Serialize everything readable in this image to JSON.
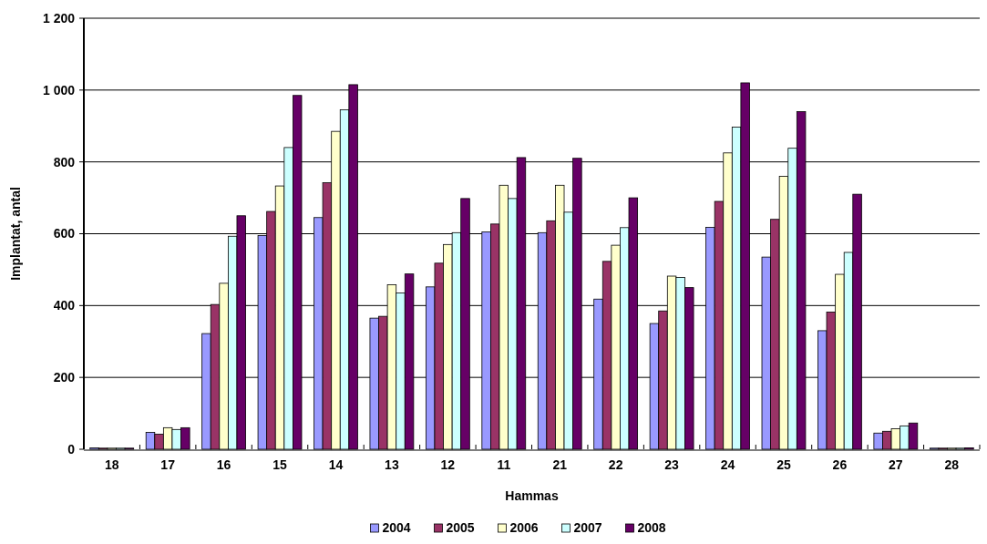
{
  "chart_data": {
    "type": "bar",
    "xlabel": "Hammas",
    "ylabel": "Implantat, antal",
    "categories": [
      "18",
      "17",
      "16",
      "15",
      "14",
      "13",
      "12",
      "11",
      "21",
      "22",
      "23",
      "24",
      "25",
      "26",
      "27",
      "28"
    ],
    "series": [
      {
        "name": "2004",
        "color": "#9999ff",
        "values": [
          4,
          47,
          322,
          595,
          645,
          365,
          452,
          605,
          603,
          418,
          350,
          618,
          535,
          330,
          45,
          3
        ]
      },
      {
        "name": "2005",
        "color": "#993366",
        "values": [
          3,
          42,
          403,
          662,
          742,
          370,
          518,
          627,
          636,
          523,
          385,
          690,
          640,
          382,
          50,
          3
        ]
      },
      {
        "name": "2006",
        "color": "#ffffcc",
        "values": [
          3,
          60,
          462,
          733,
          885,
          458,
          570,
          735,
          735,
          568,
          482,
          825,
          760,
          487,
          57,
          3
        ]
      },
      {
        "name": "2007",
        "color": "#ccffff",
        "values": [
          3,
          55,
          593,
          840,
          945,
          435,
          603,
          698,
          660,
          617,
          478,
          897,
          838,
          548,
          65,
          3
        ]
      },
      {
        "name": "2008",
        "color": "#660066",
        "values": [
          3,
          60,
          650,
          985,
          1015,
          488,
          698,
          812,
          810,
          700,
          450,
          1020,
          940,
          710,
          73,
          4
        ]
      }
    ],
    "ylim": [
      0,
      1200
    ],
    "yticks": [
      0,
      200,
      400,
      600,
      800,
      {
        "value": 1000,
        "label": "1 000"
      },
      {
        "value": 1200,
        "label": "1 200"
      }
    ],
    "grid": "y",
    "legend": "bottom"
  }
}
